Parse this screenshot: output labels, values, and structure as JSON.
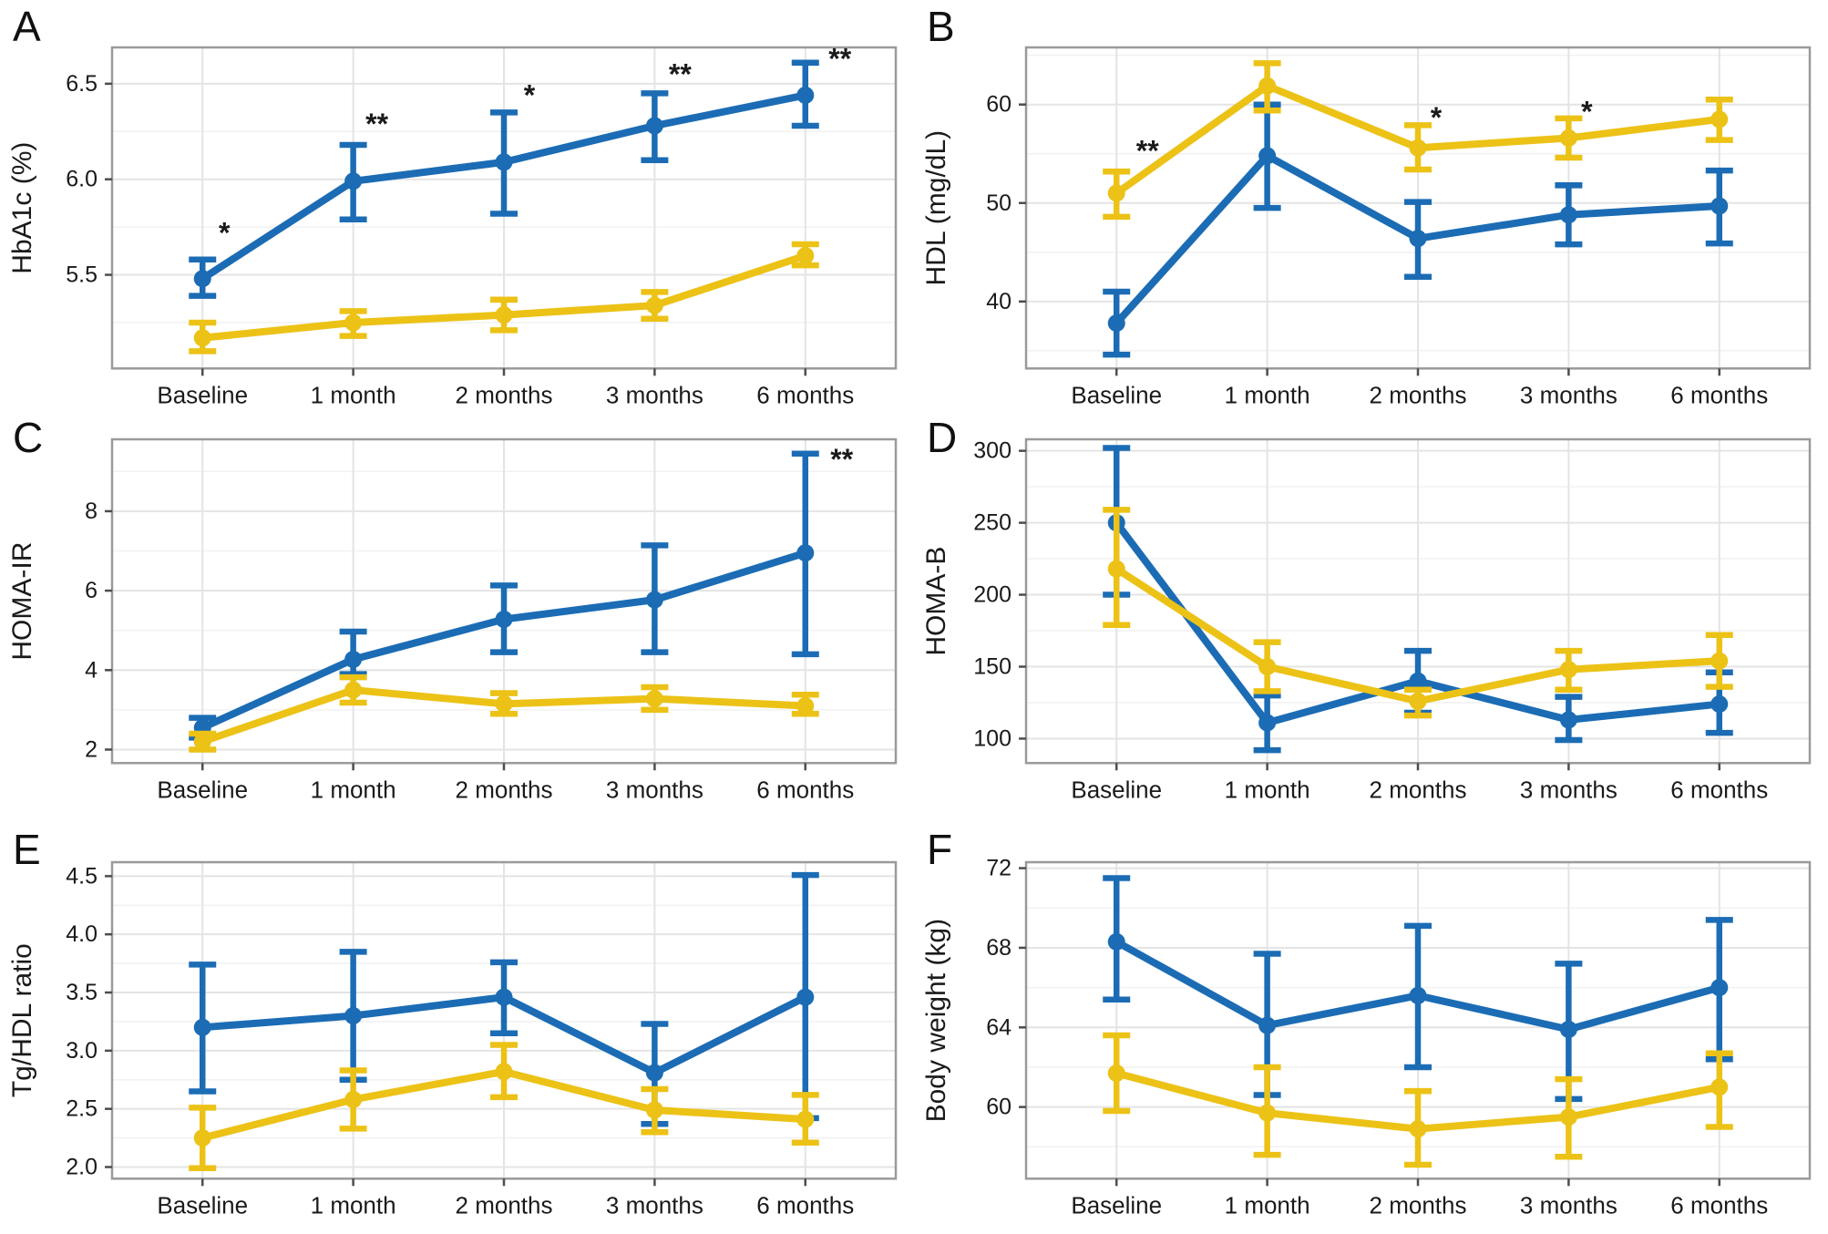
{
  "figure": {
    "background": "#ffffff"
  },
  "colors": {
    "series_blue": "#1b6cb4",
    "series_yellow": "#ecc216",
    "grid_major": "#e4e4e4",
    "grid_minor": "#f2f2f2",
    "frame": "#9a9a9a",
    "tick": "#4d4d4d",
    "text": "#1a1a1a",
    "plot_bg": "#ffffff"
  },
  "categories": [
    "Baseline",
    "1 month",
    "2 months",
    "3 months",
    "6 months"
  ],
  "chart_data": [
    {
      "type": "line",
      "panel": "A",
      "ylabel": "HbA1c (%)",
      "categories": [
        "Baseline",
        "1 month",
        "2 months",
        "3 months",
        "6 months"
      ],
      "ylim": [
        5.01,
        6.69
      ],
      "yticks": [
        5.5,
        6.0,
        6.5
      ],
      "ytick_labels": [
        "5.5",
        "6.0",
        "6.5"
      ],
      "grid": true,
      "legend": "none",
      "series": [
        {
          "name": "blue",
          "color": "#1b6cb4",
          "values": [
            5.48,
            5.99,
            6.09,
            6.28,
            6.44
          ],
          "err_lo": [
            5.39,
            5.79,
            5.82,
            6.1,
            6.28
          ],
          "err_hi": [
            5.58,
            6.18,
            6.35,
            6.45,
            6.61
          ]
        },
        {
          "name": "yellow",
          "color": "#ecc216",
          "values": [
            5.17,
            5.25,
            5.29,
            5.34,
            5.6
          ],
          "err_lo": [
            5.1,
            5.18,
            5.21,
            5.27,
            5.55
          ],
          "err_hi": [
            5.25,
            5.31,
            5.37,
            5.41,
            5.66
          ]
        }
      ],
      "significance": [
        {
          "cat": 0,
          "text": "*",
          "y": 5.72,
          "dx": 24
        },
        {
          "cat": 1,
          "text": "**",
          "y": 6.29,
          "dx": 26
        },
        {
          "cat": 2,
          "text": "*",
          "y": 6.44,
          "dx": 28
        },
        {
          "cat": 3,
          "text": "**",
          "y": 6.55,
          "dx": 28
        },
        {
          "cat": 4,
          "text": "**",
          "y": 6.63,
          "dx": 38
        }
      ]
    },
    {
      "type": "line",
      "panel": "B",
      "ylabel": "HDL (mg/dL)",
      "categories": [
        "Baseline",
        "1 month",
        "2 months",
        "3 months",
        "6 months"
      ],
      "ylim": [
        33.2,
        65.8
      ],
      "yticks": [
        40,
        50,
        60
      ],
      "ytick_labels": [
        "40",
        "50",
        "60"
      ],
      "grid": true,
      "legend": "none",
      "series": [
        {
          "name": "blue",
          "color": "#1b6cb4",
          "values": [
            37.8,
            54.8,
            46.4,
            48.8,
            49.7
          ],
          "err_lo": [
            34.6,
            49.5,
            42.5,
            45.8,
            45.9
          ],
          "err_hi": [
            41.0,
            60.0,
            50.1,
            51.8,
            53.3
          ]
        },
        {
          "name": "yellow",
          "color": "#ecc216",
          "values": [
            51.0,
            61.9,
            55.6,
            56.6,
            58.5
          ],
          "err_lo": [
            48.6,
            59.4,
            53.4,
            54.6,
            56.4
          ],
          "err_hi": [
            53.2,
            64.2,
            57.9,
            58.6,
            60.5
          ]
        }
      ],
      "significance": [
        {
          "cat": 0,
          "text": "**",
          "y": 55.3,
          "dx": 34
        },
        {
          "cat": 2,
          "text": "*",
          "y": 58.7,
          "dx": 20
        },
        {
          "cat": 3,
          "text": "*",
          "y": 59.3,
          "dx": 20
        }
      ]
    },
    {
      "type": "line",
      "panel": "C",
      "ylabel": "HOMA-IR",
      "categories": [
        "Baseline",
        "1 month",
        "2 months",
        "3 months",
        "6 months"
      ],
      "ylim": [
        1.66,
        9.81
      ],
      "yticks": [
        2,
        4,
        6,
        8
      ],
      "ytick_labels": [
        "2",
        "4",
        "6",
        "8"
      ],
      "grid": true,
      "legend": "none",
      "series": [
        {
          "name": "blue",
          "color": "#1b6cb4",
          "values": [
            2.55,
            4.27,
            5.28,
            5.77,
            6.95
          ],
          "err_lo": [
            2.3,
            3.9,
            4.45,
            4.45,
            4.4
          ],
          "err_hi": [
            2.8,
            4.97,
            6.13,
            7.14,
            9.45
          ]
        },
        {
          "name": "yellow",
          "color": "#ecc216",
          "values": [
            2.2,
            3.5,
            3.15,
            3.28,
            3.1
          ],
          "err_lo": [
            2.0,
            3.18,
            2.9,
            3.0,
            2.9
          ],
          "err_hi": [
            2.4,
            3.82,
            3.42,
            3.57,
            3.38
          ]
        }
      ],
      "significance": [
        {
          "cat": 4,
          "text": "**",
          "y": 9.3,
          "dx": 40
        }
      ]
    },
    {
      "type": "line",
      "panel": "D",
      "ylabel": "HOMA-B",
      "categories": [
        "Baseline",
        "1 month",
        "2 months",
        "3 months",
        "6 months"
      ],
      "ylim": [
        83,
        308
      ],
      "yticks": [
        100,
        150,
        200,
        250,
        300
      ],
      "ytick_labels": [
        "100",
        "150",
        "200",
        "250",
        "300"
      ],
      "grid": true,
      "legend": "none",
      "series": [
        {
          "name": "blue",
          "color": "#1b6cb4",
          "values": [
            250,
            111,
            140,
            113,
            124
          ],
          "err_lo": [
            200,
            92,
            118,
            99,
            104
          ],
          "err_hi": [
            302,
            130,
            161,
            129,
            146
          ]
        },
        {
          "name": "yellow",
          "color": "#ecc216",
          "values": [
            218,
            150,
            126,
            148,
            154
          ],
          "err_lo": [
            179,
            133,
            116,
            134,
            136
          ],
          "err_hi": [
            259,
            167,
            134,
            161,
            172
          ]
        }
      ],
      "significance": []
    },
    {
      "type": "line",
      "panel": "E",
      "ylabel": "Tg/HDL ratio",
      "categories": [
        "Baseline",
        "1 month",
        "2 months",
        "3 months",
        "6 months"
      ],
      "ylim": [
        1.9,
        4.62
      ],
      "yticks": [
        2.0,
        2.5,
        3.0,
        3.5,
        4.0,
        4.5
      ],
      "ytick_labels": [
        "2.0",
        "2.5",
        "3.0",
        "3.5",
        "4.0",
        "4.5"
      ],
      "grid": true,
      "legend": "none",
      "series": [
        {
          "name": "blue",
          "color": "#1b6cb4",
          "values": [
            3.2,
            3.3,
            3.46,
            2.81,
            3.46
          ],
          "err_lo": [
            2.65,
            2.75,
            3.15,
            2.37,
            2.42
          ],
          "err_hi": [
            3.74,
            3.85,
            3.76,
            3.23,
            4.51
          ]
        },
        {
          "name": "yellow",
          "color": "#ecc216",
          "values": [
            2.25,
            2.58,
            2.82,
            2.49,
            2.41
          ],
          "err_lo": [
            1.99,
            2.33,
            2.6,
            2.3,
            2.21
          ],
          "err_hi": [
            2.51,
            2.83,
            3.05,
            2.67,
            2.62
          ]
        }
      ],
      "significance": []
    },
    {
      "type": "line",
      "panel": "F",
      "ylabel": "Body weight (kg)",
      "categories": [
        "Baseline",
        "1 month",
        "2 months",
        "3 months",
        "6 months"
      ],
      "ylim": [
        56.4,
        72.3
      ],
      "yticks": [
        60,
        64,
        68,
        72
      ],
      "ytick_labels": [
        "60",
        "64",
        "68",
        "72"
      ],
      "grid": true,
      "legend": "none",
      "series": [
        {
          "name": "blue",
          "color": "#1b6cb4",
          "values": [
            68.3,
            64.1,
            65.6,
            63.9,
            66.0
          ],
          "err_lo": [
            65.4,
            60.6,
            62.0,
            60.4,
            62.4
          ],
          "err_hi": [
            71.5,
            67.7,
            69.1,
            67.2,
            69.4
          ]
        },
        {
          "name": "yellow",
          "color": "#ecc216",
          "values": [
            61.7,
            59.7,
            58.9,
            59.5,
            61.0
          ],
          "err_lo": [
            59.8,
            57.6,
            57.1,
            57.5,
            59.0
          ],
          "err_hi": [
            63.6,
            62.0,
            60.8,
            61.4,
            62.7
          ]
        }
      ],
      "significance": []
    }
  ]
}
